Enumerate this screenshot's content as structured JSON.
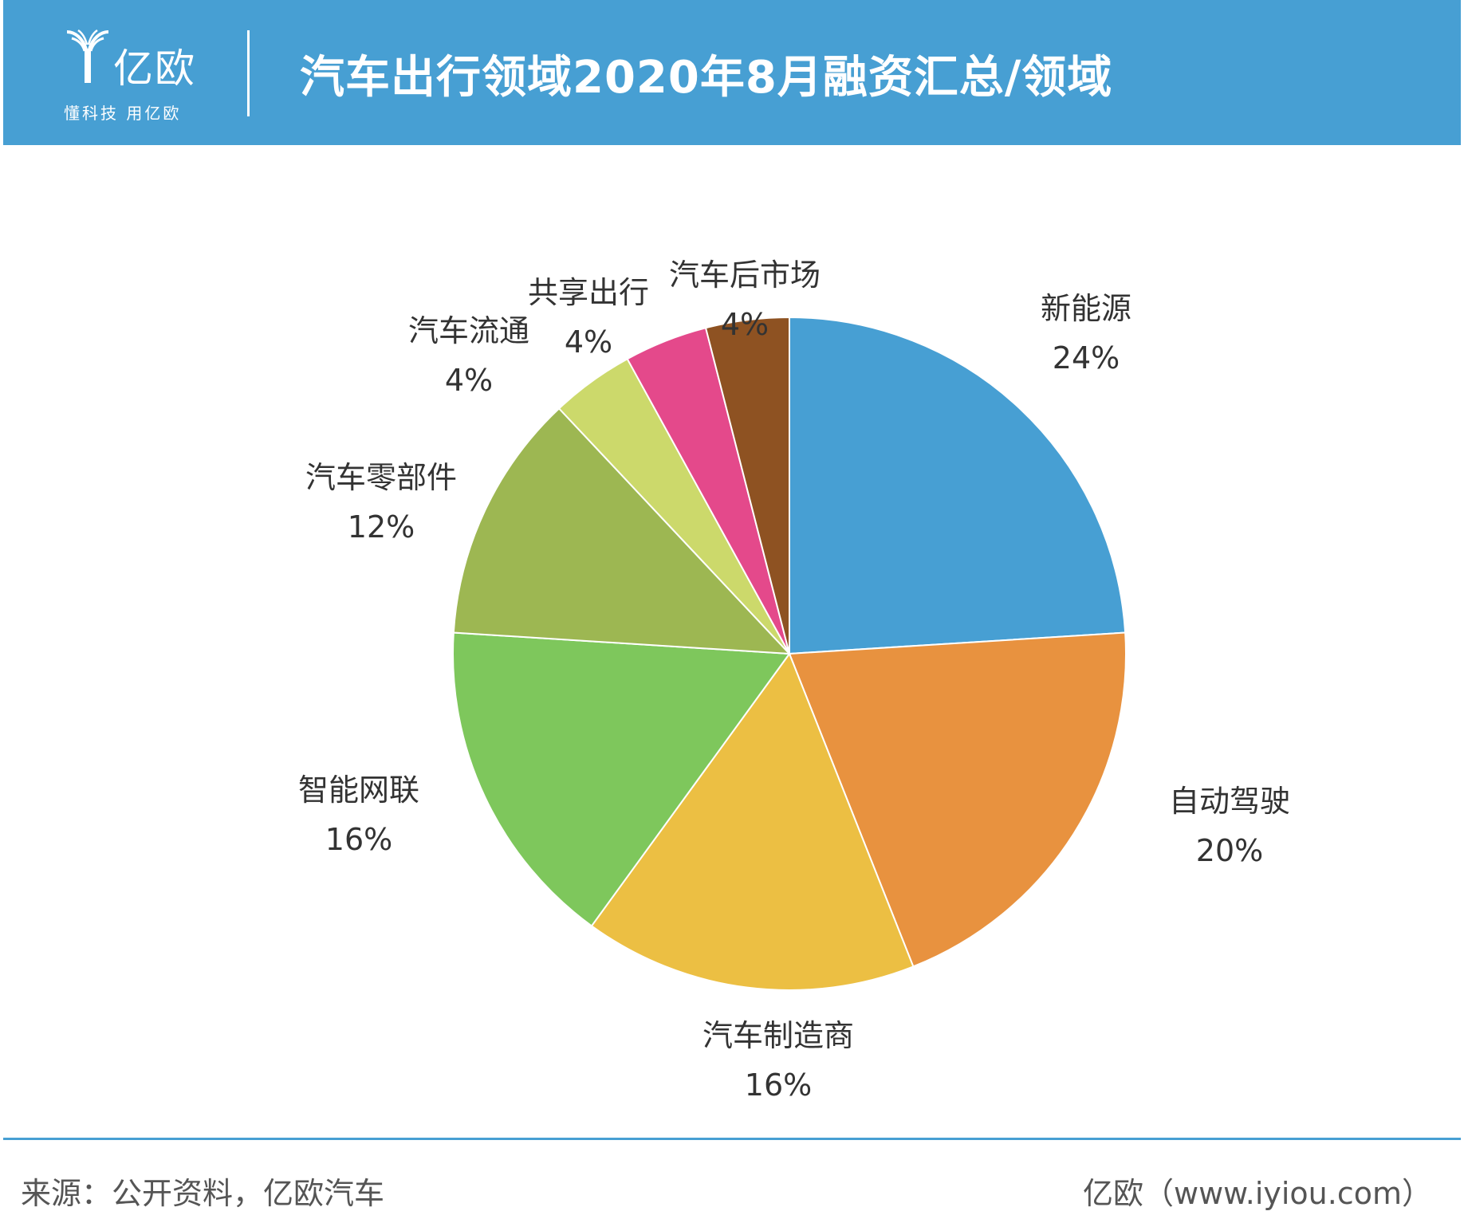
{
  "header": {
    "logo_text": "亿欧",
    "logo_slogan": "懂科技 用亿欧",
    "title": "汽车出行领域2020年8月融资汇总/领域"
  },
  "chart_data": {
    "type": "pie",
    "categories": [
      "新能源",
      "自动驾驶",
      "汽车制造商",
      "智能网联",
      "汽车零部件",
      "汽车流通",
      "共享出行",
      "汽车后市场"
    ],
    "values": [
      24,
      20,
      16,
      16,
      12,
      4,
      4,
      4
    ],
    "labels": [
      "24%",
      "20%",
      "16%",
      "16%",
      "12%",
      "4%",
      "4%",
      "4%"
    ],
    "colors": [
      "#479fd3",
      "#e8923f",
      "#ecbf43",
      "#7ec75c",
      "#9db752",
      "#ccd96b",
      "#e4498b",
      "#8e5222"
    ]
  },
  "footer": {
    "source": "来源：公开资料，亿欧汽车",
    "brand": "亿欧（www.iyiou.com）"
  }
}
